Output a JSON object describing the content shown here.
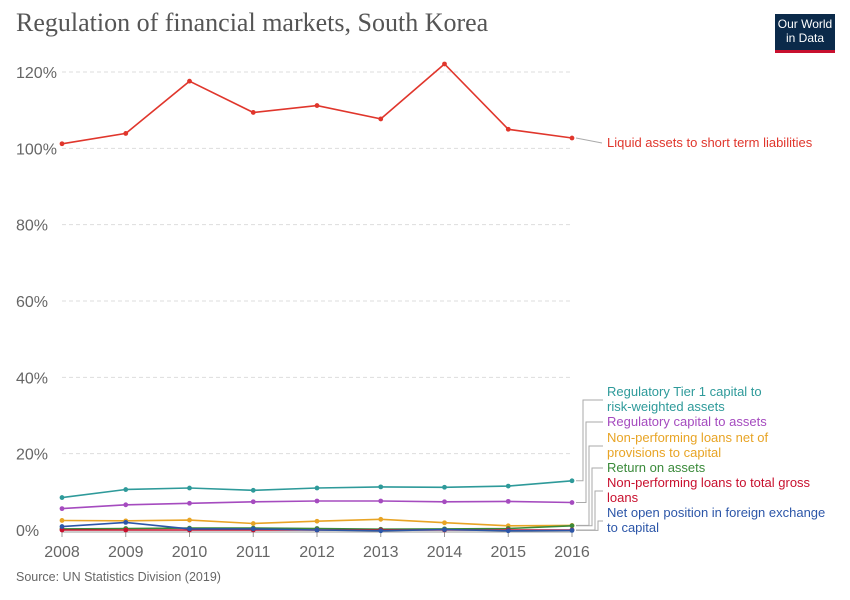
{
  "header": {
    "title": "Regulation of financial markets, South Korea",
    "logo_line1": "Our World",
    "logo_line2": "in Data"
  },
  "footer": {
    "source": "Source: UN Statistics Division (2019)"
  },
  "chart_data": {
    "type": "line",
    "title": "Regulation of financial markets, South Korea",
    "x": [
      2008,
      2009,
      2010,
      2011,
      2012,
      2013,
      2014,
      2015,
      2016
    ],
    "x_ticks": [
      "2008",
      "2009",
      "2010",
      "2011",
      "2012",
      "2013",
      "2014",
      "2015",
      "2016"
    ],
    "y_ticks": [
      "0%",
      "20%",
      "40%",
      "60%",
      "80%",
      "100%",
      "120%"
    ],
    "ylim": [
      0,
      120
    ],
    "grid": "horizontal dashed",
    "legend": "right (inline labels)",
    "series": [
      {
        "name": "Liquid assets to short term liabilities",
        "color": "#e0362c",
        "values": [
          101.2,
          103.9,
          117.6,
          109.4,
          111.2,
          107.7,
          122.1,
          105.0,
          102.7
        ]
      },
      {
        "name": "Regulatory Tier 1 capital to risk-weighted assets",
        "color": "#2e9a9a",
        "values": [
          8.5,
          10.6,
          11.0,
          10.4,
          11.0,
          11.3,
          11.2,
          11.5,
          12.9
        ]
      },
      {
        "name": "Regulatory capital to assets",
        "color": "#a54bbf",
        "values": [
          5.6,
          6.6,
          7.0,
          7.4,
          7.6,
          7.6,
          7.4,
          7.5,
          7.2
        ]
      },
      {
        "name": "Non-performing loans net of provisions to capital",
        "color": "#e8a425",
        "values": [
          2.5,
          2.4,
          2.6,
          1.7,
          2.3,
          2.8,
          1.9,
          1.1,
          1.2
        ]
      },
      {
        "name": "Return on assets",
        "color": "#3a8a3a",
        "values": [
          0.3,
          0.4,
          0.5,
          0.5,
          0.4,
          0.2,
          0.3,
          0.4,
          1.1
        ]
      },
      {
        "name": "Non-performing loans to total gross loans",
        "color": "#c8102e",
        "values": [
          0.0,
          0.0,
          0.0,
          0.0,
          0.0,
          0.0,
          0.0,
          0.0,
          0.0
        ]
      },
      {
        "name": "Net open position in foreign exchange to capital",
        "color": "#2c56a8",
        "values": [
          0.9,
          2.0,
          0.3,
          0.3,
          0.0,
          -0.2,
          0.1,
          -0.2,
          -0.1
        ]
      }
    ]
  }
}
